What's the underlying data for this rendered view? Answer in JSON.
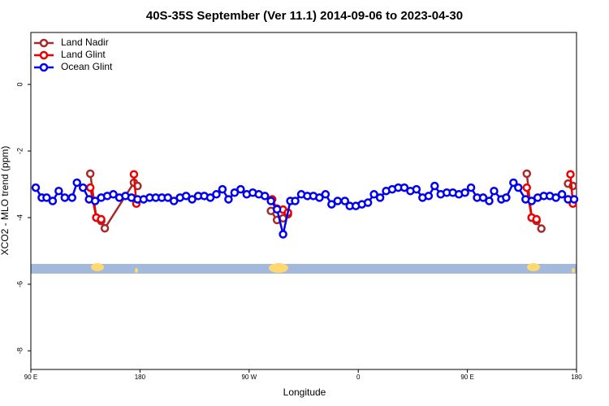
{
  "chart_data": {
    "type": "line",
    "title": "40S-35S September (Ver 11.1)   2014-09-06 to 2023-04-30",
    "x_label": "Longitude",
    "y_label": "XCO2 - MLO trend (ppm)",
    "xlim": [
      90,
      540
    ],
    "ylim": [
      -8.56,
      1.56
    ],
    "xticks": [
      {
        "value": 90,
        "label": "90 E"
      },
      180,
      {
        "value": 270,
        "label": "90 W"
      },
      {
        "value": 360,
        "label": "0"
      },
      {
        "value": 450,
        "label": "90 E"
      },
      180
    ],
    "yticks": [
      0,
      -2,
      -4,
      -6,
      -8
    ],
    "legend": "top-left",
    "series": [
      {
        "name": "Land Nadir",
        "color": "#a52a2a",
        "x": [
          139,
          144,
          148,
          151,
          175,
          178,
          null,
          288,
          293,
          298,
          302,
          null,
          499,
          503,
          507,
          511,
          null,
          533,
          537
        ],
        "values": [
          -2.68,
          -4.0,
          -4.1,
          -4.32,
          -2.95,
          -3.05,
          null,
          -3.8,
          -4.07,
          -4.02,
          -3.9,
          null,
          -2.68,
          -4.0,
          -4.1,
          -4.33,
          null,
          -2.98,
          -3.05
        ]
      },
      {
        "name": "Land Glint",
        "color": "#ee0000",
        "x": [
          139,
          144,
          148,
          null,
          175,
          177,
          null,
          289,
          293,
          298,
          302,
          null,
          499,
          503,
          507,
          null,
          535,
          537
        ],
        "values": [
          -3.1,
          -4.0,
          -4.05,
          null,
          -2.7,
          -3.58,
          null,
          -3.45,
          -3.73,
          -3.76,
          -3.85,
          null,
          -3.1,
          -4.0,
          -4.05,
          null,
          -2.7,
          -3.58
        ]
      },
      {
        "name": "Ocean Glint",
        "color": "#0000ee",
        "x": [
          94,
          99,
          103,
          108,
          113,
          118,
          124,
          128,
          133,
          138,
          143,
          148,
          153,
          158,
          163,
          168,
          173,
          178,
          183,
          188,
          193,
          198,
          203,
          208,
          213,
          218,
          223,
          228,
          233,
          238,
          243,
          248,
          253,
          258,
          263,
          268,
          273,
          278,
          283,
          288,
          293,
          298,
          304,
          308,
          313,
          318,
          323,
          328,
          333,
          338,
          343,
          349,
          353,
          358,
          363,
          368,
          373,
          378,
          383,
          388,
          393,
          398,
          403,
          408,
          413,
          418,
          423,
          428,
          433,
          438,
          443,
          448,
          453,
          458,
          463,
          468,
          472,
          478,
          482,
          488,
          492,
          498,
          503,
          508,
          513,
          518,
          523,
          528,
          533,
          538
        ],
        "values": [
          -3.1,
          -3.4,
          -3.4,
          -3.5,
          -3.2,
          -3.4,
          -3.4,
          -2.95,
          -3.1,
          -3.45,
          -3.5,
          -3.4,
          -3.35,
          -3.3,
          -3.4,
          -3.35,
          -3.4,
          -3.45,
          -3.45,
          -3.4,
          -3.4,
          -3.4,
          -3.4,
          -3.5,
          -3.4,
          -3.35,
          -3.45,
          -3.35,
          -3.35,
          -3.4,
          -3.3,
          -3.15,
          -3.45,
          -3.25,
          -3.15,
          -3.3,
          -3.25,
          -3.3,
          -3.35,
          -3.5,
          -3.75,
          -4.5,
          -3.5,
          -3.5,
          -3.3,
          -3.35,
          -3.35,
          -3.4,
          -3.3,
          -3.6,
          -3.5,
          -3.5,
          -3.65,
          -3.65,
          -3.6,
          -3.55,
          -3.3,
          -3.4,
          -3.2,
          -3.15,
          -3.1,
          -3.1,
          -3.2,
          -3.15,
          -3.4,
          -3.35,
          -3.05,
          -3.3,
          -3.25,
          -3.25,
          -3.3,
          -3.25,
          -3.1,
          -3.4,
          -3.4,
          -3.5,
          -3.2,
          -3.45,
          -3.4,
          -2.95,
          -3.1,
          -3.45,
          -3.5,
          -3.4,
          -3.35,
          -3.35,
          -3.4,
          -3.3,
          -3.45,
          -3.45
        ]
      }
    ]
  }
}
